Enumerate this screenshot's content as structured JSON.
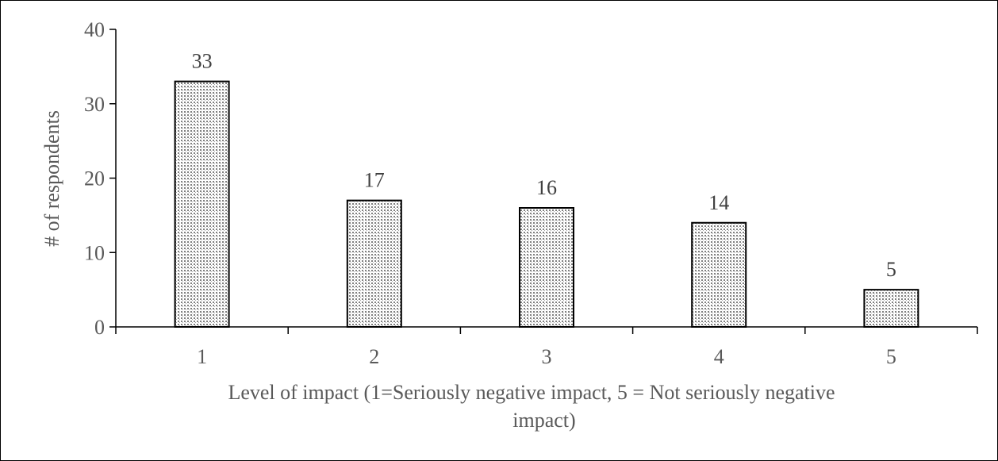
{
  "chart_data": {
    "type": "bar",
    "categories": [
      "1",
      "2",
      "3",
      "4",
      "5"
    ],
    "values": [
      33,
      17,
      16,
      14,
      5
    ],
    "data_labels": [
      "33",
      "17",
      "16",
      "14",
      "5"
    ],
    "title": "",
    "xlabel_lines": [
      "Level of impact (1=Seriously negative impact, 5 = Not seriously negative",
      "impact)"
    ],
    "ylabel": "# of respondents",
    "ylim": [
      0,
      40
    ],
    "yticks": [
      "0",
      "10",
      "20",
      "30",
      "40"
    ],
    "grid": false,
    "legend": "none",
    "bar_fill": "dotted pattern",
    "bar_stroke": "#000000"
  }
}
